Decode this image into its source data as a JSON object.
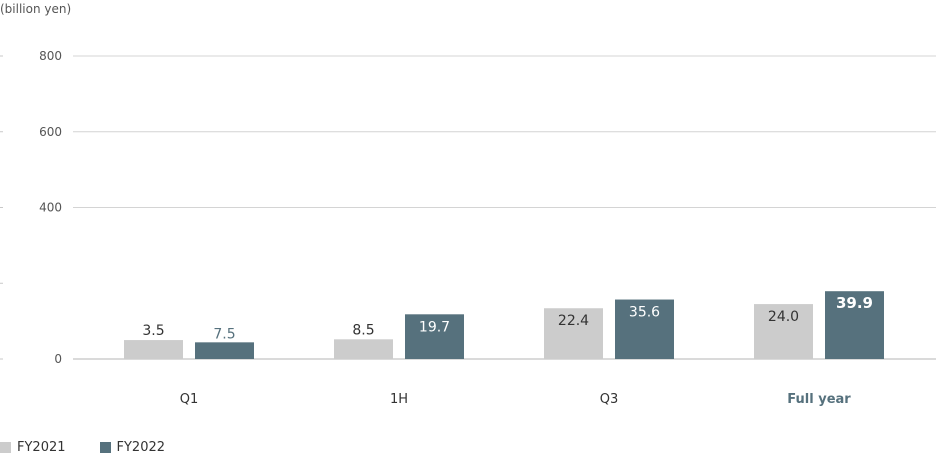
{
  "chart_data": {
    "type": "bar",
    "unit_label": "(billion yen)",
    "categories": [
      "Q1",
      "1H",
      "Q3",
      "Full year"
    ],
    "highlight_category": "Full year",
    "yticks": [
      0,
      400,
      600,
      800
    ],
    "series": [
      {
        "name": "FY2021",
        "color": "#cccccc",
        "values": [
          50,
          52,
          134,
          145
        ],
        "labels": [
          "3.5",
          "8.5",
          "22.4",
          "24.0"
        ]
      },
      {
        "name": "FY2022",
        "color": "#56717d",
        "values": [
          44,
          118,
          157,
          179
        ],
        "labels": [
          "7.5",
          "19.7",
          "35.6",
          "39.9"
        ]
      }
    ],
    "legend_position": "bottom-left",
    "grid": true
  }
}
